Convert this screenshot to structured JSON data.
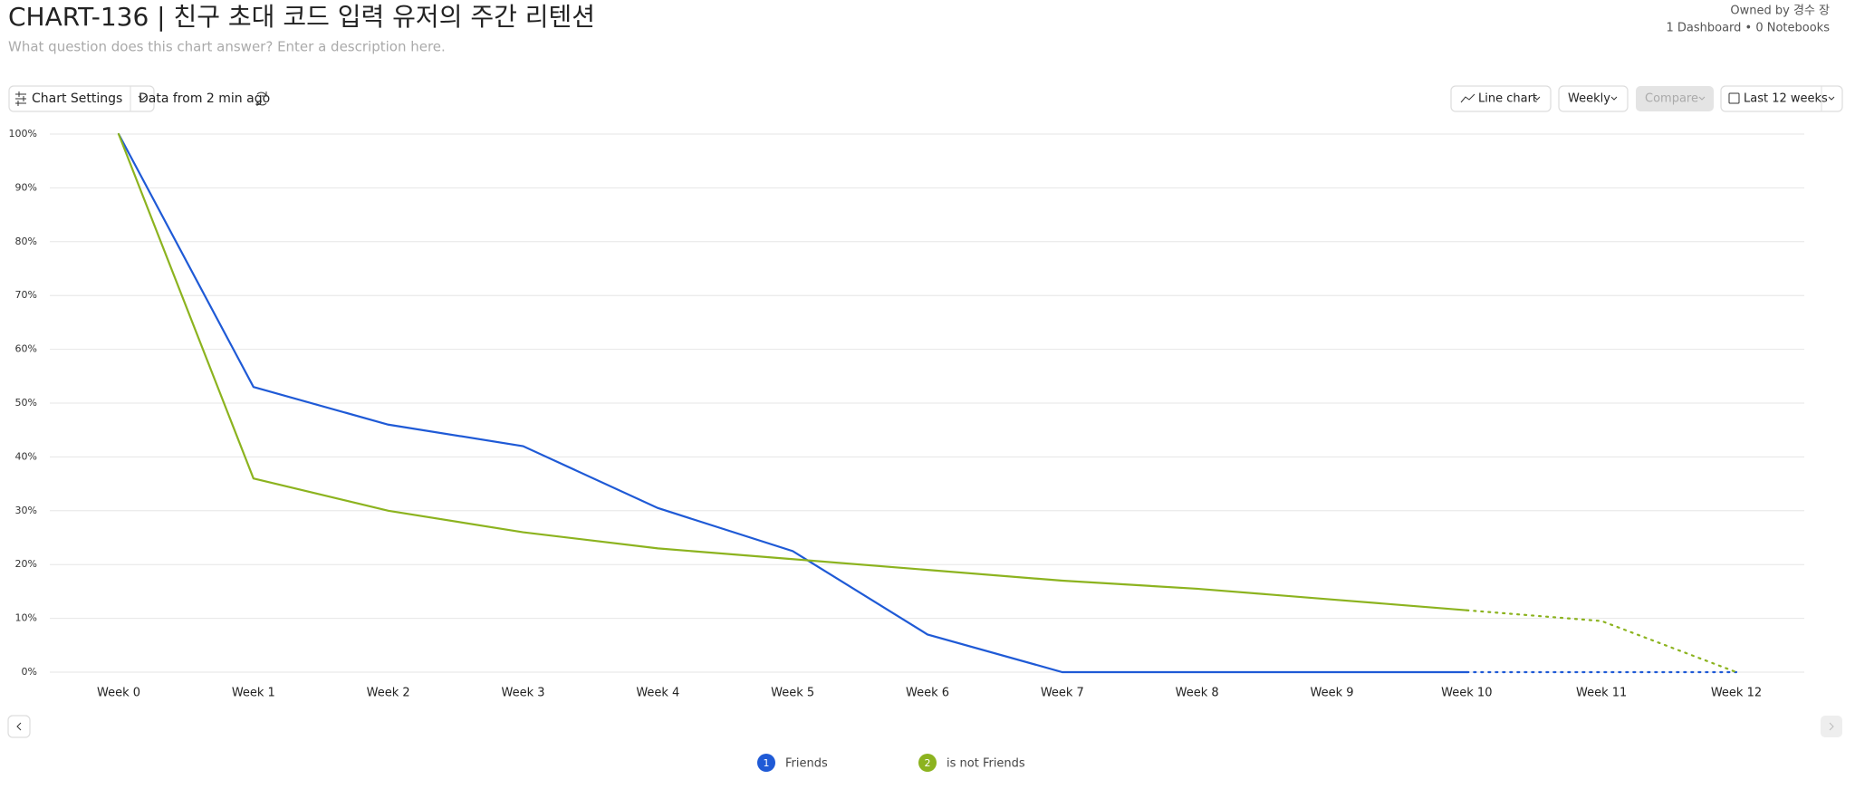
{
  "header": {
    "title": "CHART-136 | 친구 초대 코드 입력 유저의 주간 리텐션",
    "description": "What question does this chart answer? Enter a description here.",
    "owner": "Owned by 경수 장",
    "links": "1 Dashboard • 0 Notebooks"
  },
  "toolbar": {
    "settings": "Chart Settings",
    "freshness": "Data from 2 min ago",
    "chart_type": "Line chart",
    "interval": "Weekly",
    "compare": "Compare",
    "range": "Last 12 weeks"
  },
  "chart_data": {
    "type": "line",
    "categories": [
      "Week 0",
      "Week 1",
      "Week 2",
      "Week 3",
      "Week 4",
      "Week 5",
      "Week 6",
      "Week 7",
      "Week 8",
      "Week 9",
      "Week 10",
      "Week 11",
      "Week 12"
    ],
    "series": [
      {
        "name": "Friends",
        "badge": "1",
        "color": "#1f5ad6",
        "values": [
          100,
          53,
          46,
          42,
          30.5,
          22.5,
          7,
          0,
          0,
          0,
          0,
          0,
          0
        ]
      },
      {
        "name": "is not Friends",
        "badge": "2",
        "color": "#8cb31f",
        "values": [
          100,
          36,
          30,
          26,
          23,
          21,
          19,
          17,
          15.5,
          13.5,
          11.5,
          9.5,
          0
        ]
      }
    ],
    "dotted_from": 10,
    "ylim": [
      0,
      100
    ],
    "yticks": [
      {
        "value": 0,
        "label": "0%"
      },
      {
        "value": 10,
        "label": "10%"
      },
      {
        "value": 20,
        "label": "20%"
      },
      {
        "value": 30,
        "label": "30%"
      },
      {
        "value": 40,
        "label": "40%"
      },
      {
        "value": 50,
        "label": "50%"
      },
      {
        "value": 60,
        "label": "60%"
      },
      {
        "value": 70,
        "label": "70%"
      },
      {
        "value": 80,
        "label": "80%"
      },
      {
        "value": 90,
        "label": "90%"
      },
      {
        "value": 100,
        "label": "100%"
      }
    ],
    "grid": true
  }
}
